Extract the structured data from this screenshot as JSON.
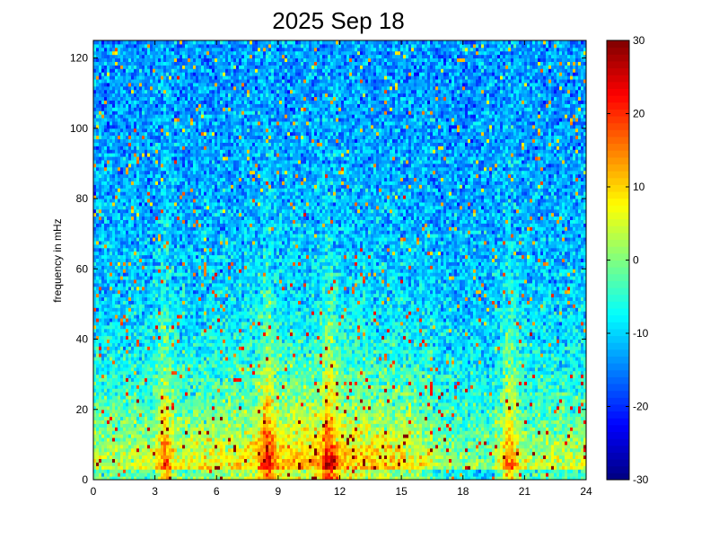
{
  "chart_data": {
    "type": "heatmap",
    "title": "2025 Sep 18",
    "xlabel": "",
    "ylabel": "frequency in mHz",
    "xlim": [
      0,
      24
    ],
    "ylim": [
      0,
      125
    ],
    "x_ticks": [
      "0",
      "3",
      "6",
      "9",
      "12",
      "15",
      "18",
      "21",
      "24"
    ],
    "y_ticks": [
      "0",
      "20",
      "40",
      "60",
      "80",
      "100",
      "120"
    ],
    "colorbar": {
      "range": [
        -30,
        30
      ],
      "ticks": [
        "-30",
        "-20",
        "-10",
        "0",
        "10",
        "20",
        "30"
      ],
      "colormap": "jet"
    },
    "grid": false,
    "description_of_field": {
      "background_level": -14,
      "low_frequency_enhancement": "strong power (>20) below ~10 mHz across most of the day, highest around hours 8-17",
      "broadband_events_hours": [
        3.5,
        8.5,
        11.5,
        20.3
      ],
      "decay_scale_mHz": 30
    }
  }
}
